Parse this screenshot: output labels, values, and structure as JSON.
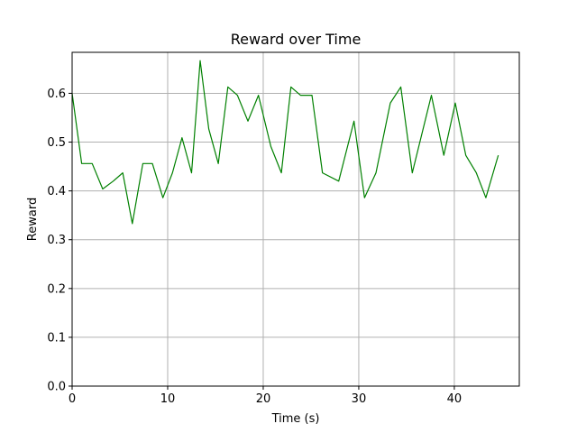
{
  "chart_data": {
    "type": "line",
    "title": "Reward over Time",
    "xlabel": "Time (s)",
    "ylabel": "Reward",
    "xlim": [
      0,
      46.8
    ],
    "ylim": [
      0.0,
      0.684
    ],
    "xticks": [
      0,
      10,
      20,
      30,
      40
    ],
    "xtick_labels": [
      "0",
      "10",
      "20",
      "30",
      "40"
    ],
    "yticks": [
      0.0,
      0.1,
      0.2,
      0.3,
      0.4,
      0.5,
      0.6
    ],
    "ytick_labels": [
      "0.0",
      "0.1",
      "0.2",
      "0.3",
      "0.4",
      "0.5",
      "0.6"
    ],
    "grid": true,
    "line_color": "#008000",
    "series": [
      {
        "x": [
          0.0,
          1.0,
          2.1,
          3.2,
          4.3,
          5.3,
          6.3,
          7.4,
          8.4,
          9.5,
          10.5,
          11.5,
          12.5,
          13.4,
          14.3,
          15.3,
          16.3,
          17.3,
          18.4,
          19.5,
          20.8,
          21.9,
          22.9,
          23.9,
          25.1,
          26.2,
          27.9,
          29.5,
          30.6,
          31.8,
          33.3,
          34.4,
          35.6,
          37.6,
          38.9,
          40.1,
          41.2,
          42.3,
          43.3,
          44.6
        ],
        "y": [
          0.6,
          0.456,
          0.456,
          0.404,
          0.42,
          0.437,
          0.333,
          0.456,
          0.456,
          0.386,
          0.437,
          0.509,
          0.437,
          0.667,
          0.527,
          0.456,
          0.613,
          0.596,
          0.543,
          0.596,
          0.491,
          0.437,
          0.613,
          0.596,
          0.596,
          0.437,
          0.42,
          0.543,
          0.386,
          0.437,
          0.58,
          0.613,
          0.437,
          0.596,
          0.473,
          0.58,
          0.473,
          0.437,
          0.386,
          0.473
        ]
      }
    ]
  }
}
